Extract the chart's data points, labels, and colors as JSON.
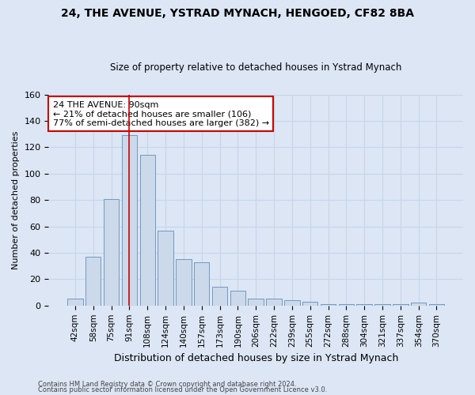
{
  "title1": "24, THE AVENUE, YSTRAD MYNACH, HENGOED, CF82 8BA",
  "title2": "Size of property relative to detached houses in Ystrad Mynach",
  "xlabel": "Distribution of detached houses by size in Ystrad Mynach",
  "ylabel": "Number of detached properties",
  "bar_labels": [
    "42sqm",
    "58sqm",
    "75sqm",
    "91sqm",
    "108sqm",
    "124sqm",
    "140sqm",
    "157sqm",
    "173sqm",
    "190sqm",
    "206sqm",
    "222sqm",
    "239sqm",
    "255sqm",
    "272sqm",
    "288sqm",
    "304sqm",
    "321sqm",
    "337sqm",
    "354sqm",
    "370sqm"
  ],
  "bar_values": [
    5,
    37,
    81,
    129,
    114,
    57,
    35,
    33,
    14,
    11,
    5,
    5,
    4,
    3,
    1,
    1,
    1,
    1,
    1,
    2,
    1
  ],
  "bar_color": "#ccd9ea",
  "bar_edge_color": "#7099c0",
  "vline_x_index": 3,
  "vline_color": "#cc0000",
  "annotation_text": "24 THE AVENUE: 90sqm\n← 21% of detached houses are smaller (106)\n77% of semi-detached houses are larger (382) →",
  "annotation_box_color": "#ffffff",
  "annotation_box_edge": "#cc0000",
  "ylim": [
    0,
    160
  ],
  "yticks": [
    0,
    20,
    40,
    60,
    80,
    100,
    120,
    140,
    160
  ],
  "grid_color": "#c8d4e8",
  "background_color": "#dce6f5",
  "fig_background": "#dce6f5",
  "footer1": "Contains HM Land Registry data © Crown copyright and database right 2024.",
  "footer2": "Contains public sector information licensed under the Open Government Licence v3.0."
}
